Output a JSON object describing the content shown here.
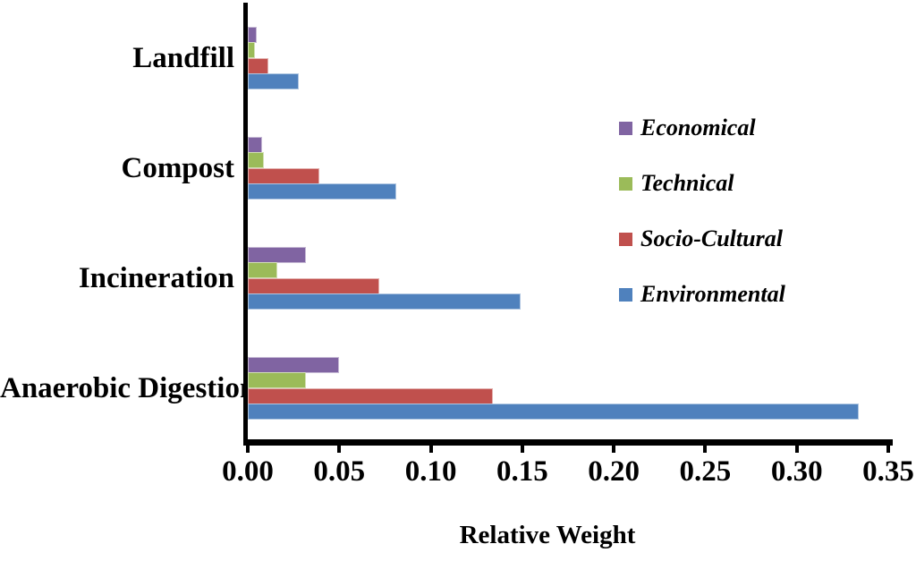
{
  "chart_data": {
    "type": "bar",
    "orientation": "horizontal",
    "title": "",
    "xlabel": "Relative Weight",
    "ylabel": "",
    "xlim": [
      0,
      0.35
    ],
    "xticks": [
      "0.00",
      "0.05",
      "0.10",
      "0.15",
      "0.20",
      "0.25",
      "0.30",
      "0.35"
    ],
    "grid": false,
    "legend_position": "upper-right",
    "axis_color": "#000000",
    "background_color": "#ffffff",
    "categories": [
      "Landfill",
      "Compost",
      "Incineration",
      "Anaerobic Digestion"
    ],
    "series": [
      {
        "name": "Economical",
        "color": "#8064A2",
        "values": [
          0.005,
          0.008,
          0.032,
          0.05
        ]
      },
      {
        "name": "Technical",
        "color": "#9BBB59",
        "values": [
          0.004,
          0.009,
          0.016,
          0.032
        ]
      },
      {
        "name": "Socio-Cultural",
        "color": "#C0504D",
        "values": [
          0.011,
          0.039,
          0.072,
          0.134
        ]
      },
      {
        "name": "Environmental",
        "color": "#4F81BD",
        "values": [
          0.028,
          0.081,
          0.149,
          0.334
        ]
      }
    ]
  }
}
